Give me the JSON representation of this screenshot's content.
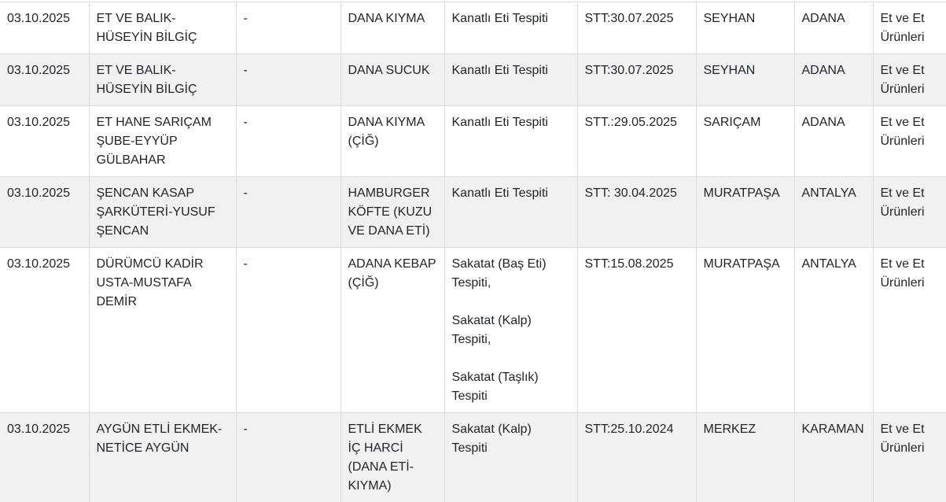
{
  "colors": {
    "row_alt_background": "#f1f1f1",
    "border": "#d9dee3",
    "text": "#212529"
  },
  "table": {
    "rows": [
      {
        "cells": [
          "03.10.2025",
          "ET VE BALIK-HÜSEYİN BİLGİÇ",
          "-",
          "DANA KIYMA",
          "Kanatlı Eti Tespiti",
          "STT:30.07.2025",
          "SEYHAN",
          "ADANA",
          "Et ve Et Ürünleri"
        ]
      },
      {
        "cells": [
          "03.10.2025",
          "ET VE BALIK-HÜSEYİN BİLGİÇ",
          "-",
          "DANA SUCUK",
          "Kanatlı Eti Tespiti",
          "STT:30.07.2025",
          "SEYHAN",
          "ADANA",
          "Et ve Et Ürünleri"
        ]
      },
      {
        "cells": [
          "03.10.2025",
          "ET HANE SARIÇAM ŞUBE-EYYÜP GÜLBAHAR",
          "-",
          "DANA KIYMA (ÇİĞ)",
          "Kanatlı Eti Tespiti",
          "STT.:29.05.2025",
          "SARIÇAM",
          "ADANA",
          "Et ve Et Ürünleri"
        ]
      },
      {
        "cells": [
          "03.10.2025",
          "ŞENCAN KASAP ŞARKÜTERİ-YUSUF ŞENCAN",
          "-",
          "HAMBURGER KÖFTE (KUZU VE DANA ETİ)",
          "Kanatlı Eti Tespiti",
          "STT: 30.04.2025",
          "MURATPAŞA",
          "ANTALYA",
          "Et ve Et Ürünleri"
        ]
      },
      {
        "cells": [
          "03.10.2025",
          "DÜRÜMCÜ KADİR USTA-MUSTAFA DEMİR",
          "-",
          "ADANA KEBAP (ÇİĞ)",
          [
            "Sakatat (Baş Eti) Tespiti,",
            "Sakatat (Kalp) Tespiti,",
            "Sakatat (Taşlık) Tespiti"
          ],
          "STT:15.08.2025",
          "MURATPAŞA",
          "ANTALYA",
          "Et ve Et Ürünleri"
        ]
      },
      {
        "cells": [
          "03.10.2025",
          "AYGÜN ETLİ EKMEK-NETİCE AYGÜN",
          "-",
          "ETLİ EKMEK İÇ HARCİ (DANA ETİ-KIYMA)",
          "Sakatat (Kalp) Tespiti",
          "STT:25.10.2024",
          "MERKEZ",
          "KARAMAN",
          "Et ve Et Ürünleri"
        ]
      }
    ]
  }
}
